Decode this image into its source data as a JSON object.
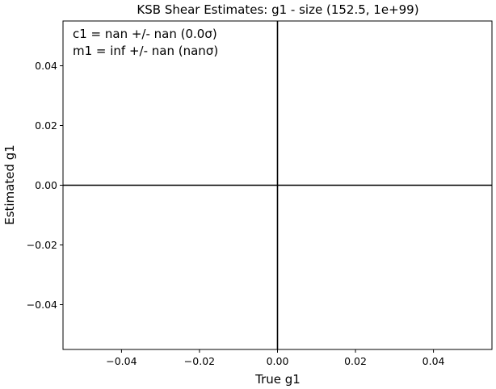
{
  "chart_data": {
    "type": "scatter",
    "title": "KSB Shear Estimates: g1  - size (152.5, 1e+99)",
    "xlabel": "True g1",
    "ylabel": "Estimated g1",
    "xlim": [
      -0.055,
      0.055
    ],
    "ylim": [
      -0.055,
      0.055
    ],
    "xticks": [
      -0.04,
      -0.02,
      0.0,
      0.02,
      0.04
    ],
    "yticks": [
      -0.04,
      -0.02,
      0.0,
      0.02,
      0.04
    ],
    "xtick_labels": [
      "−0.04",
      "−0.02",
      "0.00",
      "0.02",
      "0.04"
    ],
    "ytick_labels": [
      "−0.04",
      "−0.02",
      "0.00",
      "0.02",
      "0.04"
    ],
    "reference_lines": [
      {
        "orientation": "vertical",
        "value": 0.0,
        "color": "#000000"
      },
      {
        "orientation": "horizontal",
        "value": 0.0,
        "color": "#000000"
      }
    ],
    "series": [],
    "annotations": [
      "c1 = nan +/- nan (0.0σ)",
      "m1 = inf +/- nan (nanσ)"
    ],
    "grid": false,
    "legend": "none"
  }
}
